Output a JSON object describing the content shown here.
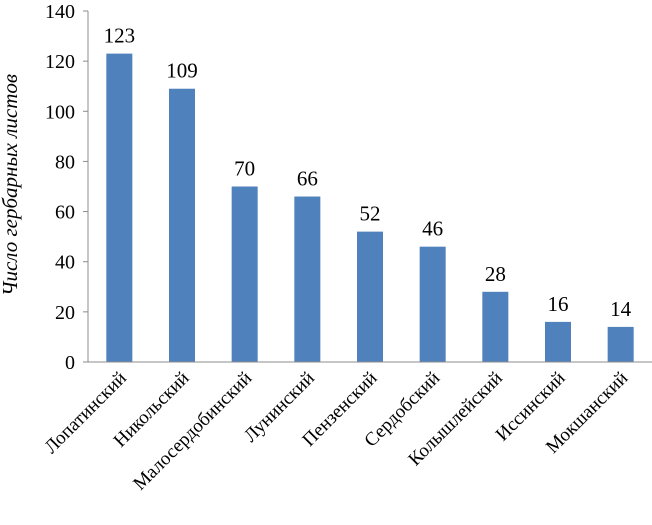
{
  "chart_data": {
    "type": "bar",
    "categories": [
      "Лопатинский",
      "Никольский",
      "Малосердобинский",
      "Лунинский",
      "Пензенский",
      "Сердобский",
      "Колышлейский",
      "Иссинский",
      "Мокшанский"
    ],
    "values": [
      123,
      109,
      70,
      66,
      52,
      46,
      28,
      16,
      14
    ],
    "title": "",
    "xlabel": "",
    "ylabel": "Число гербарных листов",
    "ylim": [
      0,
      140
    ],
    "yticks": [
      0,
      20,
      40,
      60,
      80,
      100,
      120,
      140
    ],
    "grid": false,
    "legend": "none",
    "bar_color": "#4f81bd",
    "axis_color": "#8c8c8c"
  }
}
